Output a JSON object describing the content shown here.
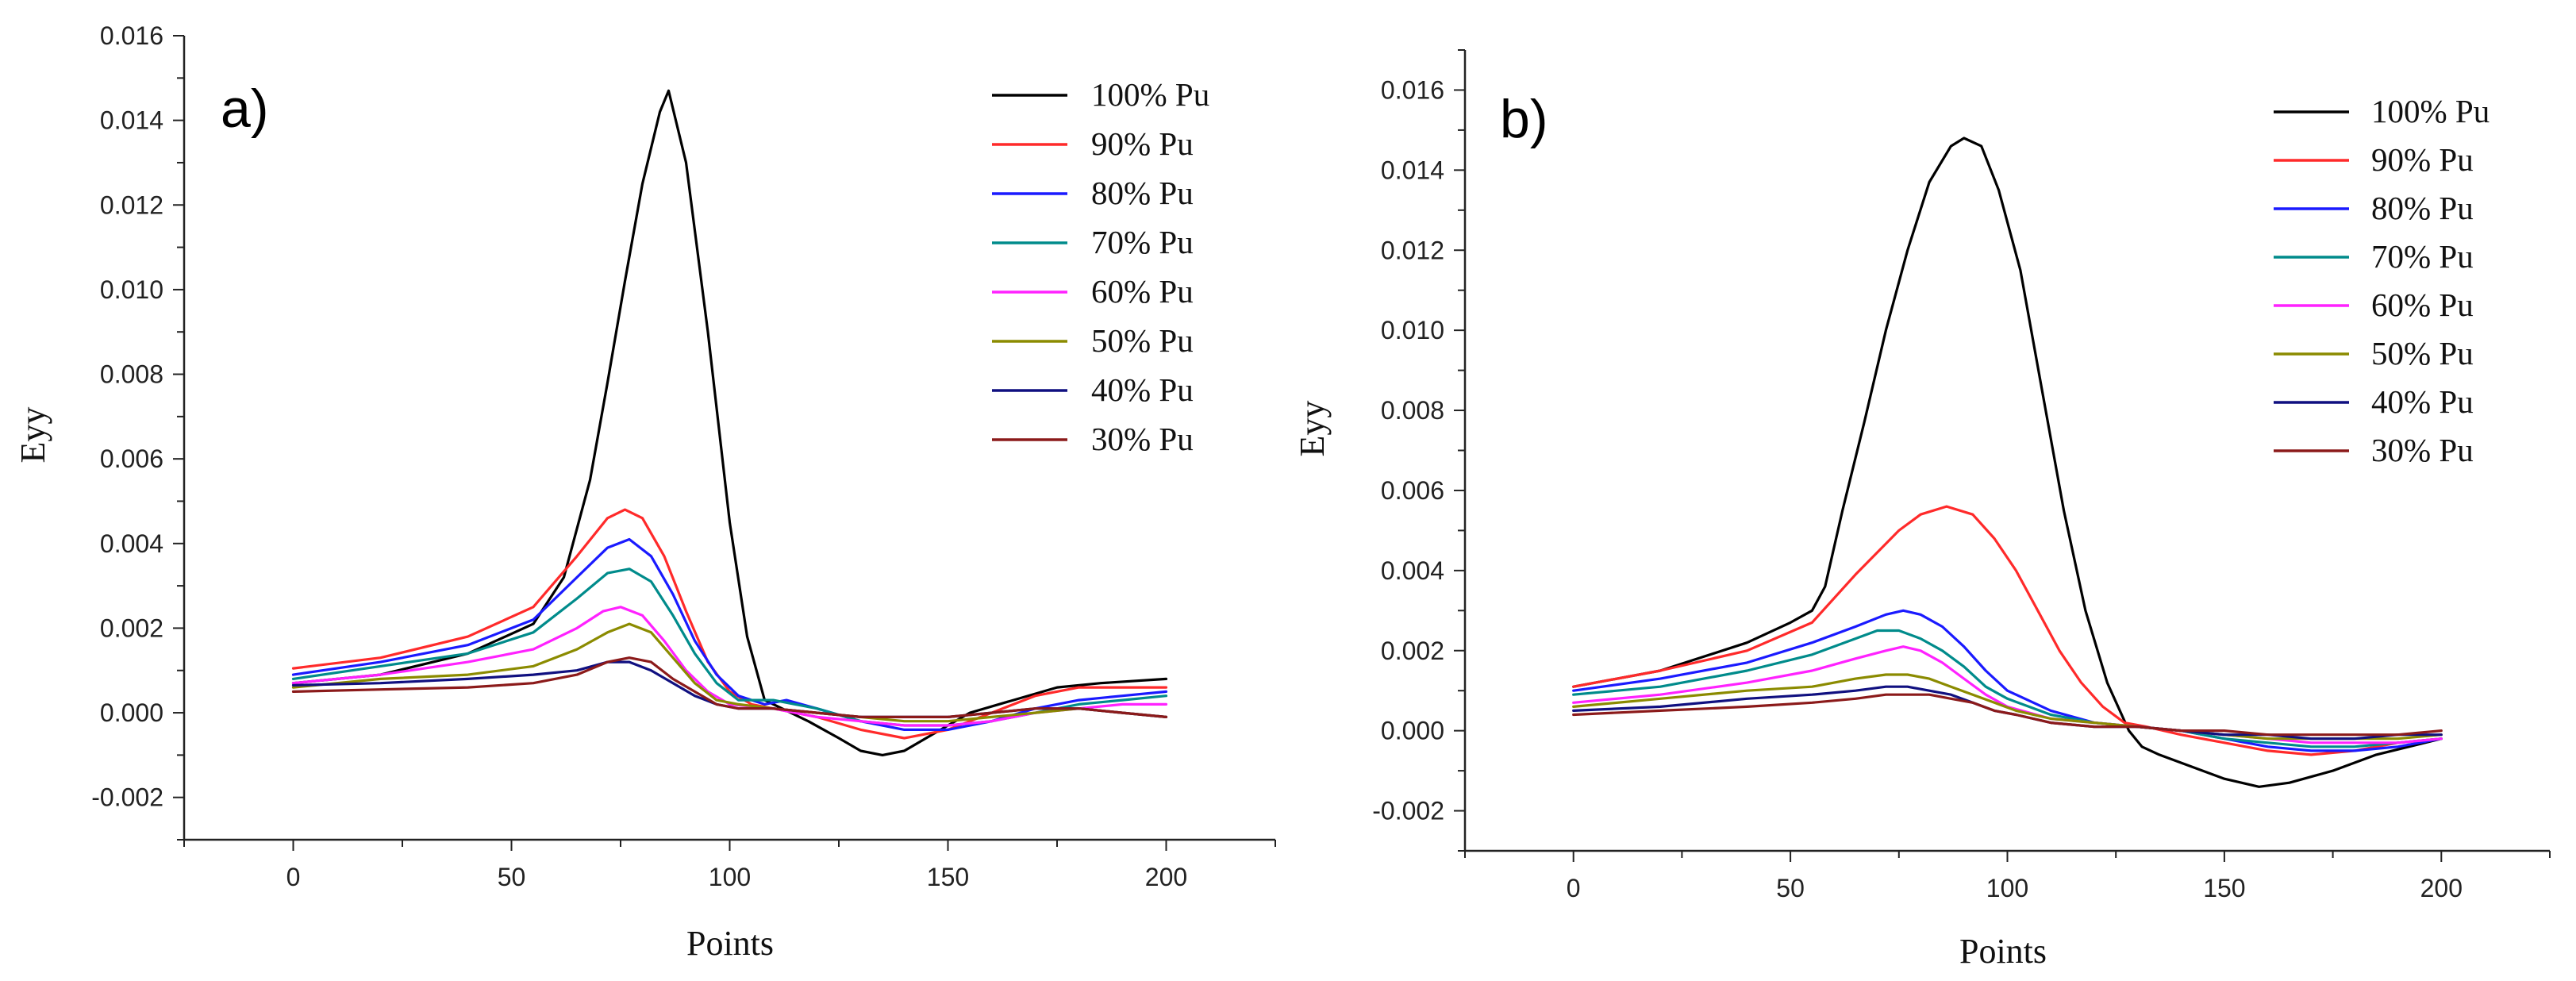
{
  "chart_data": [
    {
      "type": "line",
      "panel_label": "a)",
      "xlabel": "Points",
      "ylabel": "Eyy",
      "xlim": [
        -25,
        225
      ],
      "ylim": [
        -0.003,
        0.016
      ],
      "xticks": [
        0,
        50,
        100,
        150,
        200
      ],
      "xtick_labels": [
        "0",
        "50",
        "100",
        "150",
        "200"
      ],
      "yticks": [
        -0.002,
        0.0,
        0.002,
        0.004,
        0.006,
        0.008,
        0.01,
        0.012,
        0.014,
        0.016
      ],
      "ytick_labels": [
        "-0.002",
        "0.000",
        "0.002",
        "0.004",
        "0.006",
        "0.008",
        "0.010",
        "0.012",
        "0.014",
        "0.016"
      ],
      "legend_position": "top-right",
      "series": [
        {
          "name": "100% Pu",
          "color": "#000000",
          "x": [
            0,
            20,
            40,
            55,
            62,
            68,
            72,
            76,
            80,
            84,
            86,
            90,
            95,
            100,
            104,
            108,
            112,
            118,
            125,
            130,
            135,
            140,
            145,
            150,
            155,
            165,
            175,
            185,
            200
          ],
          "y": [
            0.0007,
            0.0009,
            0.0014,
            0.0021,
            0.0032,
            0.0055,
            0.0078,
            0.0102,
            0.0125,
            0.0142,
            0.0147,
            0.013,
            0.009,
            0.0045,
            0.0018,
            0.0003,
            0.0001,
            -0.0002,
            -0.0006,
            -0.0009,
            -0.001,
            -0.0009,
            -0.0006,
            -0.0003,
            0.0,
            0.0003,
            0.0006,
            0.0007,
            0.0008
          ]
        },
        {
          "name": "90% Pu",
          "color": "#ff2a2a",
          "x": [
            0,
            20,
            40,
            55,
            65,
            72,
            76,
            80,
            85,
            90,
            95,
            100,
            105,
            110,
            120,
            130,
            140,
            150,
            160,
            170,
            180,
            190,
            200
          ],
          "y": [
            0.00105,
            0.0013,
            0.0018,
            0.0025,
            0.0037,
            0.0046,
            0.0048,
            0.0046,
            0.0037,
            0.0024,
            0.0012,
            0.0005,
            0.0002,
            0.0001,
            -0.0001,
            -0.0004,
            -0.0006,
            -0.0004,
            0.0,
            0.0004,
            0.0006,
            0.0006,
            0.0006
          ]
        },
        {
          "name": "80% Pu",
          "color": "#1a1aff",
          "x": [
            0,
            20,
            40,
            55,
            65,
            72,
            77,
            82,
            87,
            92,
            97,
            102,
            108,
            113,
            120,
            130,
            140,
            150,
            160,
            170,
            180,
            190,
            200
          ],
          "y": [
            0.0009,
            0.0012,
            0.0016,
            0.0022,
            0.0032,
            0.0039,
            0.0041,
            0.0037,
            0.0028,
            0.0017,
            0.0009,
            0.0004,
            0.0002,
            0.0003,
            0.0001,
            -0.0002,
            -0.0004,
            -0.0004,
            -0.0002,
            0.0001,
            0.0003,
            0.0004,
            0.0005
          ]
        },
        {
          "name": "70% Pu",
          "color": "#008b8b",
          "x": [
            0,
            20,
            40,
            55,
            65,
            72,
            77,
            82,
            87,
            92,
            97,
            102,
            110,
            115,
            120,
            130,
            140,
            150,
            160,
            170,
            180,
            190,
            200
          ],
          "y": [
            0.0008,
            0.0011,
            0.0014,
            0.0019,
            0.0027,
            0.0033,
            0.0034,
            0.0031,
            0.0023,
            0.0014,
            0.0007,
            0.0003,
            0.0003,
            0.0002,
            0.0001,
            -0.0002,
            -0.0003,
            -0.0003,
            -0.0002,
            0.0,
            0.0002,
            0.0003,
            0.0004
          ]
        },
        {
          "name": "60% Pu",
          "color": "#ff22ff",
          "x": [
            0,
            20,
            40,
            55,
            65,
            71,
            75,
            80,
            85,
            90,
            95,
            100,
            110,
            120,
            130,
            140,
            150,
            160,
            170,
            180,
            190,
            200
          ],
          "y": [
            0.0007,
            0.0009,
            0.0012,
            0.0015,
            0.002,
            0.0024,
            0.0025,
            0.0023,
            0.0017,
            0.001,
            0.0005,
            0.0002,
            0.0001,
            -0.0001,
            -0.0002,
            -0.0003,
            -0.0003,
            -0.0002,
            0.0,
            0.0001,
            0.0002,
            0.0002
          ]
        },
        {
          "name": "50% Pu",
          "color": "#8b8b00",
          "x": [
            0,
            20,
            40,
            55,
            65,
            72,
            77,
            82,
            87,
            92,
            97,
            102,
            110,
            120,
            130,
            140,
            150,
            160,
            170,
            180,
            190,
            200
          ],
          "y": [
            0.0006,
            0.0008,
            0.0009,
            0.0011,
            0.0015,
            0.0019,
            0.0021,
            0.0019,
            0.0013,
            0.0007,
            0.0003,
            0.0002,
            0.0001,
            0.0,
            -0.0001,
            -0.0002,
            -0.0002,
            -0.0001,
            0.0,
            0.0001,
            0.0,
            -0.0001
          ]
        },
        {
          "name": "40% Pu",
          "color": "#101080",
          "x": [
            0,
            20,
            40,
            55,
            65,
            72,
            77,
            82,
            87,
            92,
            97,
            102,
            110,
            120,
            130,
            140,
            150,
            160,
            170,
            180,
            190,
            200
          ],
          "y": [
            0.00065,
            0.0007,
            0.0008,
            0.0009,
            0.001,
            0.0012,
            0.0012,
            0.001,
            0.0007,
            0.0004,
            0.0002,
            0.0001,
            0.0001,
            0.0,
            -0.0001,
            -0.0001,
            -0.0001,
            0.0,
            0.0001,
            0.0001,
            0.0,
            -0.0001
          ]
        },
        {
          "name": "30% Pu",
          "color": "#8b1a1a",
          "x": [
            0,
            20,
            40,
            55,
            65,
            72,
            77,
            82,
            87,
            92,
            97,
            102,
            110,
            120,
            130,
            140,
            150,
            160,
            170,
            180,
            190,
            200
          ],
          "y": [
            0.0005,
            0.00055,
            0.0006,
            0.0007,
            0.0009,
            0.0012,
            0.0013,
            0.0012,
            0.0008,
            0.0005,
            0.0002,
            0.0001,
            0.0001,
            0.0,
            -0.0001,
            -0.0001,
            -0.0001,
            0.0,
            0.0001,
            0.0001,
            0.0,
            -0.0001
          ]
        }
      ]
    },
    {
      "type": "line",
      "panel_label": "b)",
      "xlabel": "Points",
      "ylabel": "Eyy",
      "xlim": [
        -25,
        225
      ],
      "ylim": [
        -0.003,
        0.017
      ],
      "xticks": [
        0,
        50,
        100,
        150,
        200
      ],
      "xtick_labels": [
        "0",
        "50",
        "100",
        "150",
        "200"
      ],
      "yticks": [
        -0.002,
        0.0,
        0.002,
        0.004,
        0.006,
        0.008,
        0.01,
        0.012,
        0.014,
        0.016
      ],
      "ytick_labels": [
        "-0.002",
        "0.000",
        "0.002",
        "0.004",
        "0.006",
        "0.008",
        "0.010",
        "0.012",
        "0.014",
        "0.016"
      ],
      "legend_position": "top-right",
      "series": [
        {
          "name": "100% Pu",
          "color": "#000000",
          "x": [
            0,
            20,
            40,
            50,
            55,
            58,
            62,
            67,
            72,
            77,
            82,
            87,
            90,
            94,
            98,
            103,
            108,
            113,
            118,
            123,
            128,
            131,
            135,
            140,
            150,
            158,
            165,
            175,
            185,
            200
          ],
          "y": [
            0.0011,
            0.0015,
            0.0022,
            0.0027,
            0.003,
            0.0036,
            0.0055,
            0.0077,
            0.01,
            0.012,
            0.0137,
            0.0146,
            0.0148,
            0.0146,
            0.0135,
            0.0115,
            0.0085,
            0.0055,
            0.003,
            0.0012,
            0.0,
            -0.0004,
            -0.0006,
            -0.0008,
            -0.0012,
            -0.0014,
            -0.0013,
            -0.001,
            -0.0006,
            -0.0002
          ]
        },
        {
          "name": "90% Pu",
          "color": "#ff2a2a",
          "x": [
            0,
            20,
            40,
            55,
            65,
            75,
            80,
            86,
            92,
            97,
            102,
            107,
            112,
            117,
            122,
            127,
            132,
            140,
            150,
            160,
            170,
            180,
            190,
            200
          ],
          "y": [
            0.0011,
            0.0015,
            0.002,
            0.0027,
            0.0039,
            0.005,
            0.0054,
            0.0056,
            0.0054,
            0.0048,
            0.004,
            0.003,
            0.002,
            0.0012,
            0.0006,
            0.0002,
            0.0001,
            -0.0001,
            -0.0003,
            -0.0005,
            -0.0006,
            -0.0005,
            -0.0003,
            -0.0002
          ]
        },
        {
          "name": "80% Pu",
          "color": "#1a1aff",
          "x": [
            0,
            20,
            40,
            55,
            65,
            72,
            76,
            80,
            85,
            90,
            95,
            100,
            110,
            120,
            130,
            140,
            150,
            160,
            170,
            180,
            190,
            200
          ],
          "y": [
            0.001,
            0.0013,
            0.0017,
            0.0022,
            0.0026,
            0.0029,
            0.003,
            0.0029,
            0.0026,
            0.0021,
            0.0015,
            0.001,
            0.0005,
            0.0002,
            0.0001,
            0.0,
            -0.0002,
            -0.0004,
            -0.0005,
            -0.0005,
            -0.0004,
            -0.0002
          ]
        },
        {
          "name": "70% Pu",
          "color": "#008b8b",
          "x": [
            0,
            20,
            40,
            55,
            65,
            70,
            75,
            80,
            85,
            90,
            95,
            100,
            110,
            120,
            130,
            140,
            150,
            160,
            170,
            180,
            190,
            200
          ],
          "y": [
            0.0009,
            0.0011,
            0.0015,
            0.0019,
            0.0023,
            0.0025,
            0.0025,
            0.0023,
            0.002,
            0.0016,
            0.0011,
            0.0008,
            0.0004,
            0.0002,
            0.0001,
            0.0,
            -0.0002,
            -0.0003,
            -0.0004,
            -0.0004,
            -0.0003,
            -0.0002
          ]
        },
        {
          "name": "60% Pu",
          "color": "#ff22ff",
          "x": [
            0,
            20,
            40,
            55,
            65,
            72,
            76,
            80,
            85,
            90,
            95,
            100,
            110,
            120,
            130,
            140,
            150,
            160,
            170,
            180,
            190,
            200
          ],
          "y": [
            0.0007,
            0.0009,
            0.0012,
            0.0015,
            0.0018,
            0.002,
            0.0021,
            0.002,
            0.0017,
            0.0013,
            0.0009,
            0.0006,
            0.0003,
            0.0002,
            0.0001,
            0.0,
            -0.0001,
            -0.0002,
            -0.0003,
            -0.0003,
            -0.0003,
            -0.0002
          ]
        },
        {
          "name": "50% Pu",
          "color": "#8b8b00",
          "x": [
            0,
            20,
            40,
            55,
            65,
            72,
            77,
            82,
            87,
            92,
            97,
            102,
            110,
            120,
            130,
            140,
            150,
            160,
            170,
            180,
            190,
            200
          ],
          "y": [
            0.0006,
            0.0008,
            0.001,
            0.0011,
            0.0013,
            0.0014,
            0.0014,
            0.0013,
            0.0011,
            0.0009,
            0.0007,
            0.0005,
            0.0003,
            0.0002,
            0.0001,
            0.0,
            -0.0001,
            -0.0002,
            -0.0002,
            -0.0002,
            -0.0002,
            -0.0001
          ]
        },
        {
          "name": "40% Pu",
          "color": "#101080",
          "x": [
            0,
            20,
            40,
            55,
            65,
            72,
            77,
            82,
            87,
            92,
            97,
            102,
            110,
            120,
            130,
            140,
            150,
            160,
            170,
            180,
            190,
            200
          ],
          "y": [
            0.0005,
            0.0006,
            0.0008,
            0.0009,
            0.001,
            0.0011,
            0.0011,
            0.001,
            0.0009,
            0.0007,
            0.0005,
            0.0004,
            0.0002,
            0.0001,
            0.0001,
            0.0,
            -0.0001,
            -0.0001,
            -0.0002,
            -0.0002,
            -0.0001,
            -0.0001
          ]
        },
        {
          "name": "30% Pu",
          "color": "#8b1a1a",
          "x": [
            0,
            20,
            40,
            55,
            65,
            72,
            77,
            82,
            87,
            92,
            97,
            102,
            110,
            120,
            130,
            140,
            150,
            160,
            170,
            180,
            190,
            200
          ],
          "y": [
            0.0004,
            0.0005,
            0.0006,
            0.0007,
            0.0008,
            0.0009,
            0.0009,
            0.0009,
            0.0008,
            0.0007,
            0.0005,
            0.0004,
            0.0002,
            0.0001,
            0.0001,
            0.0,
            0.0,
            -0.0001,
            -0.0001,
            -0.0001,
            -0.0001,
            0.0
          ]
        }
      ]
    }
  ]
}
